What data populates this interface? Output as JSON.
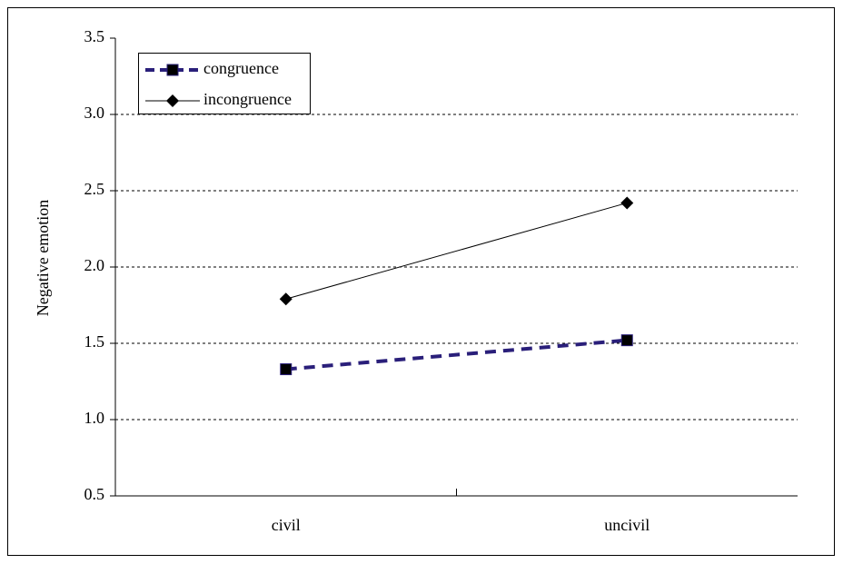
{
  "chart_data": {
    "type": "line",
    "categories": [
      "civil",
      "uncivil"
    ],
    "series": [
      {
        "name": "congruence",
        "color": "#2a1f7a",
        "values": [
          1.33,
          1.52
        ]
      },
      {
        "name": "incongruence",
        "color": "#000000",
        "values": [
          1.79,
          2.42
        ]
      }
    ],
    "y_label": "Negative emotion",
    "ylim": [
      0.5,
      3.5
    ],
    "yticks": [
      0.5,
      {
        "value": 1,
        "label": "1.0"
      },
      1.5,
      {
        "value": 2,
        "label": "2.0"
      },
      2.5,
      {
        "value": 3,
        "label": "3.0"
      },
      3.5
    ],
    "grid": true,
    "legend": "top-left"
  }
}
